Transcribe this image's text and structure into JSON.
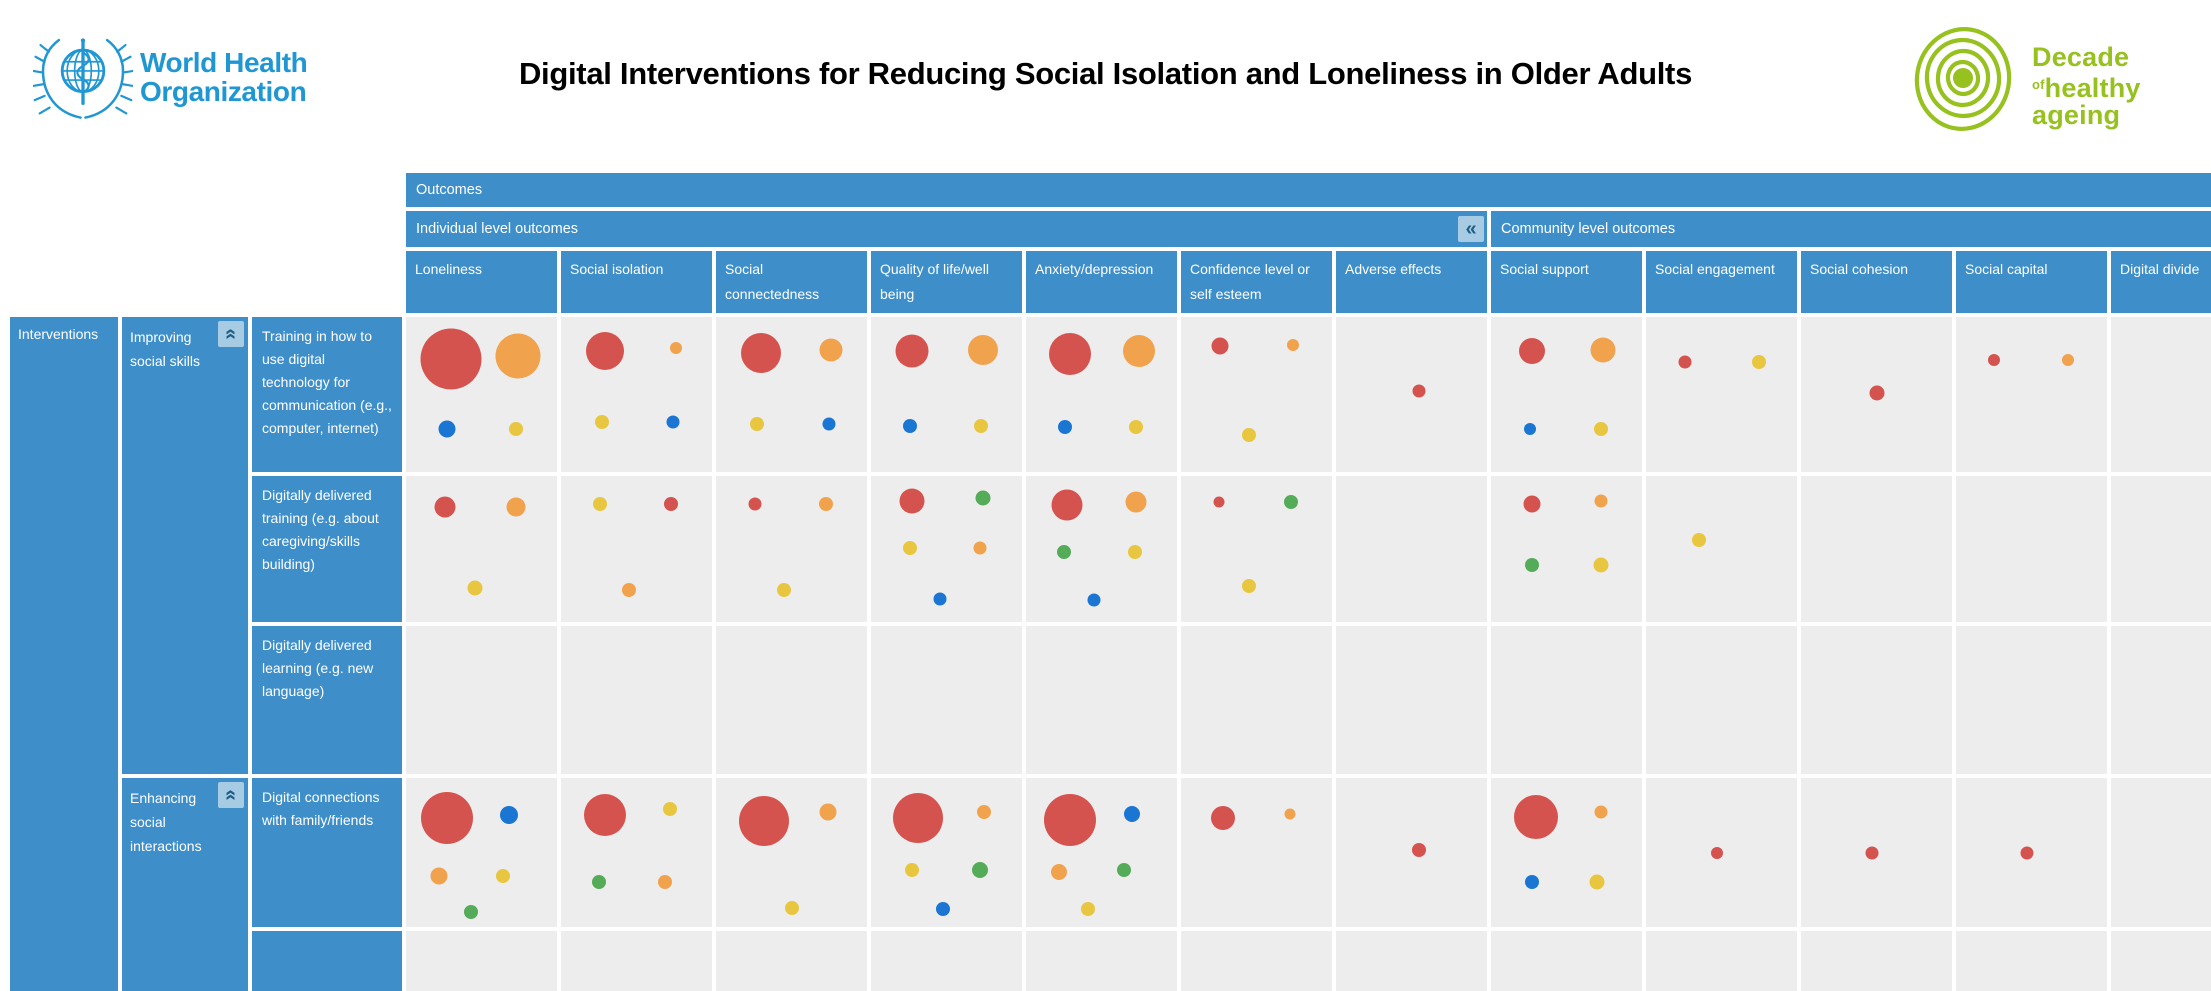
{
  "page": {
    "title": "Digital Interventions for Reducing Social Isolation and Loneliness in Older Adults",
    "who_logo": {
      "line1": "World Health",
      "line2": "Organization"
    },
    "decade_logo": {
      "word1": "Decade",
      "word_small": "of",
      "word2": "healthy",
      "word3": "ageing"
    }
  },
  "colors": {
    "header_blue": "#3d8ec9",
    "cell_gray": "#ededed",
    "collapse_bg": "#a6cbe3",
    "collapse_fg": "#1e5e86",
    "who_blue": "#2097d3",
    "decade_green": "#96c11e",
    "bubble": {
      "red": "#d5534e",
      "orange": "#f0a24c",
      "yellow": "#e9c63f",
      "blue": "#1a76d2",
      "green": "#54ab58"
    }
  },
  "chart_data": {
    "type": "bubble_matrix",
    "title": "Digital Interventions for Reducing Social Isolation and Loneliness in Older Adults",
    "corner_label": "Interventions",
    "outcomes_label": "Outcomes",
    "collapse_columns_icon": "«",
    "collapse_rows_icon": "«",
    "column_groups": [
      {
        "label": "Individual level outcomes",
        "span": 7
      },
      {
        "label": "Community level outcomes",
        "span": 5
      }
    ],
    "columns": [
      "Loneliness",
      "Social isolation",
      "Social connectedness",
      "Quality of life/well being",
      "Anxiety/depression",
      "Confidence level or self esteem",
      "Adverse effects",
      "Social support",
      "Social engagement",
      "Social cohesion",
      "Social capital",
      "Digital divide"
    ],
    "row_groups": [
      {
        "label": "Improving social skills",
        "rows": 3
      },
      {
        "label": "Enhancing social interactions",
        "rows": 2
      }
    ],
    "bubble_note": "each bubble = [color, diameter_px, x_percent, y_percent] within its cell",
    "rows": [
      {
        "label": "Training in how to use digital technology for communication (e.g., computer, internet)",
        "cells": [
          [
            [
              "red",
              61,
              30,
              27
            ],
            [
              "orange",
              45,
              74,
              25
            ],
            [
              "blue",
              17,
              27,
              72
            ],
            [
              "yellow",
              14,
              73,
              72
            ]
          ],
          [
            [
              "red",
              38,
              29,
              22
            ],
            [
              "orange",
              12,
              76,
              20
            ],
            [
              "yellow",
              14,
              27,
              68
            ],
            [
              "blue",
              13,
              74,
              68
            ]
          ],
          [
            [
              "red",
              40,
              30,
              23
            ],
            [
              "orange",
              23,
              76,
              21
            ],
            [
              "yellow",
              14,
              27,
              69
            ],
            [
              "blue",
              13,
              75,
              69
            ]
          ],
          [
            [
              "red",
              33,
              27,
              22
            ],
            [
              "orange",
              30,
              74,
              21
            ],
            [
              "blue",
              14,
              26,
              70
            ],
            [
              "yellow",
              14,
              73,
              70
            ]
          ],
          [
            [
              "red",
              42,
              29,
              24
            ],
            [
              "orange",
              32,
              75,
              22
            ],
            [
              "blue",
              14,
              26,
              71
            ],
            [
              "yellow",
              14,
              73,
              71
            ]
          ],
          [
            [
              "red",
              17,
              26,
              19
            ],
            [
              "orange",
              12,
              74,
              18
            ],
            [
              "yellow",
              14,
              45,
              76
            ]
          ],
          [
            [
              "red",
              13,
              55,
              48
            ]
          ],
          [
            [
              "red",
              26,
              27,
              22
            ],
            [
              "orange",
              25,
              74,
              21
            ],
            [
              "blue",
              12,
              26,
              72
            ],
            [
              "yellow",
              14,
              73,
              72
            ]
          ],
          [
            [
              "red",
              13,
              26,
              29
            ],
            [
              "yellow",
              14,
              75,
              29
            ]
          ],
          [
            [
              "red",
              15,
              50,
              49
            ]
          ],
          [
            [
              "red",
              12,
              25,
              28
            ],
            [
              "orange",
              12,
              74,
              28
            ]
          ],
          []
        ]
      },
      {
        "label": "Digitally delivered training (e.g. about caregiving/skills building)",
        "cells": [
          [
            [
              "red",
              21,
              26,
              21
            ],
            [
              "orange",
              19,
              73,
              21
            ],
            [
              "yellow",
              15,
              46,
              77
            ]
          ],
          [
            [
              "yellow",
              14,
              26,
              19
            ],
            [
              "red",
              14,
              73,
              19
            ],
            [
              "orange",
              14,
              45,
              78
            ]
          ],
          [
            [
              "red",
              13,
              26,
              19
            ],
            [
              "orange",
              14,
              73,
              19
            ],
            [
              "yellow",
              14,
              45,
              78
            ]
          ],
          [
            [
              "red",
              25,
              27,
              17
            ],
            [
              "green",
              15,
              74,
              15
            ],
            [
              "yellow",
              14,
              26,
              49
            ],
            [
              "orange",
              13,
              72,
              49
            ],
            [
              "blue",
              13,
              46,
              84
            ]
          ],
          [
            [
              "red",
              31,
              27,
              20
            ],
            [
              "orange",
              21,
              73,
              18
            ],
            [
              "green",
              14,
              25,
              52
            ],
            [
              "yellow",
              14,
              72,
              52
            ],
            [
              "blue",
              13,
              45,
              85
            ]
          ],
          [
            [
              "red",
              11,
              25,
              18
            ],
            [
              "green",
              14,
              73,
              18
            ],
            [
              "yellow",
              14,
              45,
              75
            ]
          ],
          [],
          [
            [
              "red",
              17,
              27,
              19
            ],
            [
              "orange",
              13,
              73,
              17
            ],
            [
              "green",
              14,
              27,
              61
            ],
            [
              "yellow",
              15,
              73,
              61
            ]
          ],
          [
            [
              "yellow",
              14,
              35,
              44
            ]
          ],
          [],
          [],
          []
        ]
      },
      {
        "label": "Digitally delivered learning (e.g. new language)",
        "cells": [
          [],
          [],
          [],
          [],
          [],
          [],
          [],
          [],
          [],
          [],
          [],
          []
        ]
      },
      {
        "label": "Digital connections with family/friends",
        "cells": [
          [
            [
              "red",
              52,
              27,
              27
            ],
            [
              "blue",
              18,
              68,
              25
            ],
            [
              "orange",
              17,
              22,
              66
            ],
            [
              "yellow",
              14,
              64,
              66
            ],
            [
              "green",
              14,
              43,
              90
            ]
          ],
          [
            [
              "red",
              42,
              29,
              25
            ],
            [
              "yellow",
              14,
              72,
              21
            ],
            [
              "green",
              14,
              25,
              70
            ],
            [
              "orange",
              14,
              69,
              70
            ]
          ],
          [
            [
              "red",
              50,
              32,
              29
            ],
            [
              "orange",
              17,
              74,
              23
            ],
            [
              "yellow",
              14,
              50,
              87
            ]
          ],
          [
            [
              "red",
              50,
              31,
              27
            ],
            [
              "orange",
              14,
              75,
              23
            ],
            [
              "yellow",
              14,
              27,
              62
            ],
            [
              "green",
              16,
              72,
              62
            ],
            [
              "blue",
              14,
              48,
              88
            ]
          ],
          [
            [
              "red",
              52,
              29,
              28
            ],
            [
              "blue",
              16,
              70,
              24
            ],
            [
              "orange",
              16,
              22,
              63
            ],
            [
              "green",
              14,
              65,
              62
            ],
            [
              "yellow",
              14,
              41,
              88
            ]
          ],
          [
            [
              "red",
              24,
              28,
              27
            ],
            [
              "orange",
              11,
              72,
              24
            ]
          ],
          [
            [
              "red",
              14,
              55,
              48
            ]
          ],
          [
            [
              "red",
              44,
              30,
              26
            ],
            [
              "orange",
              13,
              73,
              23
            ],
            [
              "blue",
              14,
              27,
              70
            ],
            [
              "yellow",
              15,
              70,
              70
            ]
          ],
          [
            [
              "red",
              12,
              47,
              50
            ]
          ],
          [
            [
              "red",
              13,
              47,
              50
            ]
          ],
          [
            [
              "red",
              13,
              47,
              50
            ]
          ],
          []
        ]
      },
      {
        "label": "",
        "cells": [
          [],
          [],
          [],
          [],
          [],
          [],
          [],
          [],
          [],
          [],
          [],
          []
        ]
      }
    ]
  }
}
